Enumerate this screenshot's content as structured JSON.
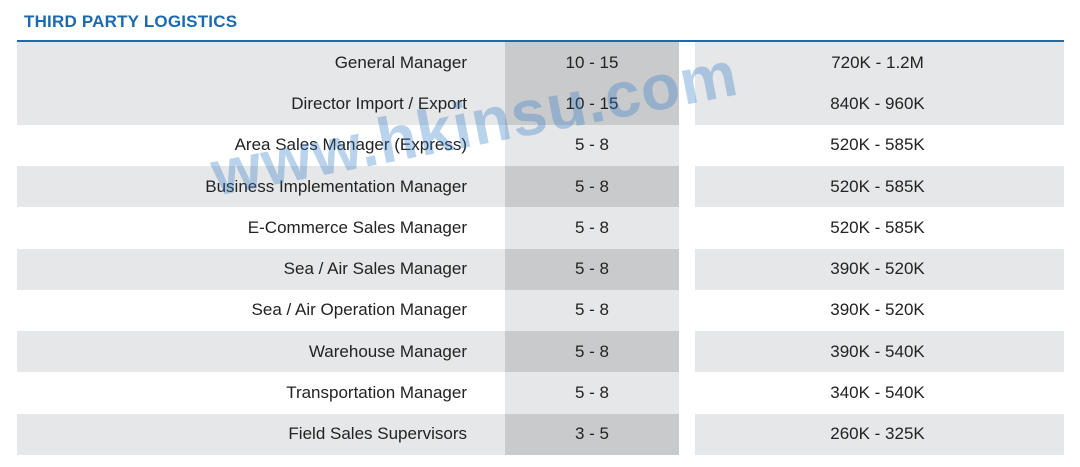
{
  "section": {
    "title": "THIRD PARTY LOGISTICS",
    "accent_color": "#1b6ab0"
  },
  "table": {
    "rows": [
      {
        "role": "General Manager",
        "years": "10 - 15",
        "salary": "720K - 1.2M"
      },
      {
        "role": "Director Import / Export",
        "years": "10 - 15",
        "salary": "840K - 960K"
      },
      {
        "role": "Area Sales Manager (Express)",
        "years": "5 - 8",
        "salary": "520K - 585K"
      },
      {
        "role": "Business Implementation Manager",
        "years": "5 - 8",
        "salary": "520K - 585K"
      },
      {
        "role": "E-Commerce Sales Manager",
        "years": "5 - 8",
        "salary": "520K - 585K"
      },
      {
        "role": "Sea / Air Sales Manager",
        "years": "5 - 8",
        "salary": "390K - 520K"
      },
      {
        "role": "Sea / Air Operation Manager",
        "years": "5 - 8",
        "salary": "390K - 520K"
      },
      {
        "role": "Warehouse Manager",
        "years": "5 - 8",
        "salary": "390K - 540K"
      },
      {
        "role": "Transportation Manager",
        "years": "5 - 8",
        "salary": "340K - 540K"
      },
      {
        "role": "Field Sales Supervisors",
        "years": "3 - 5",
        "salary": "260K - 325K"
      }
    ]
  },
  "watermark": {
    "text": "www.hkinsu.com",
    "color": "#2e78c8"
  }
}
